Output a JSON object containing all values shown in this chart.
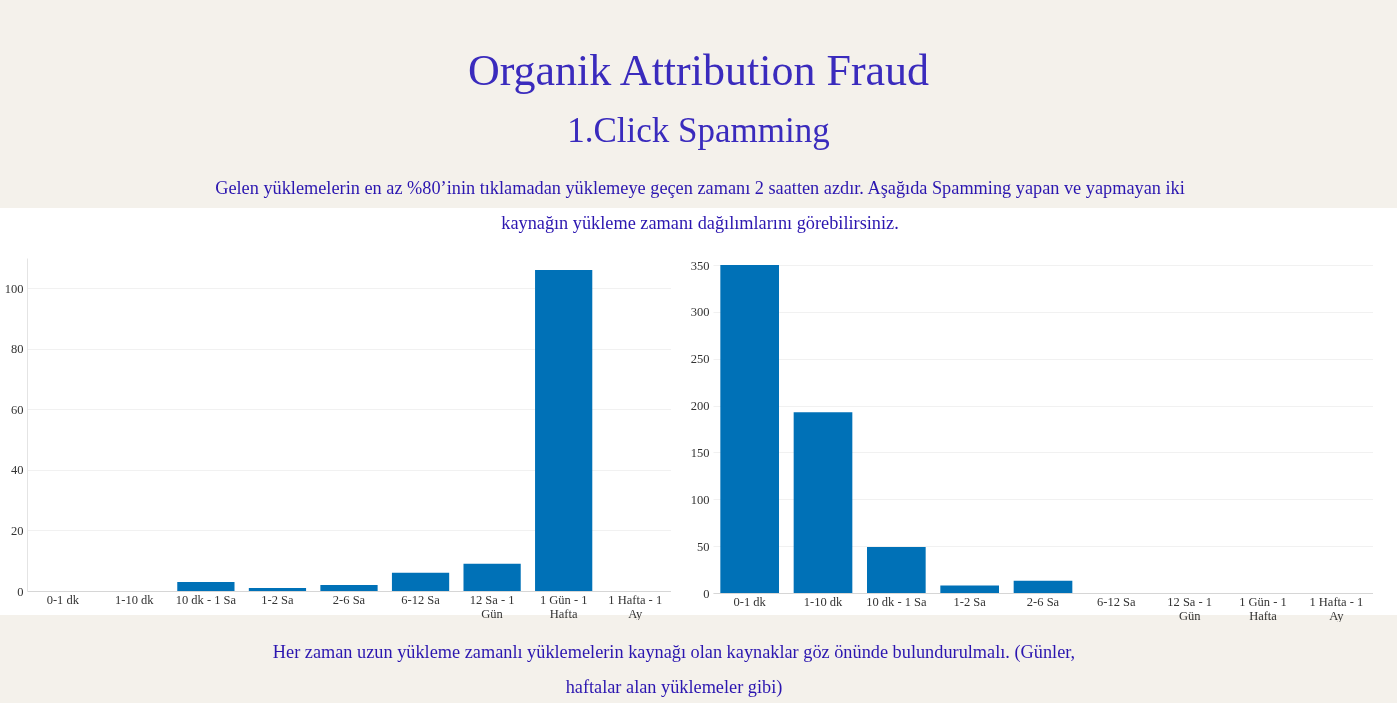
{
  "chart_data": [
    {
      "type": "bar",
      "title": "Organik Attribution Fraud",
      "subtitle": "1.Click Spamming",
      "annotations": [
        "Gelen yüklemelerin en az %80’inin tıklamadan yüklemeye geçen zamanı 2 saatten azdır. Aşağıda Spamming yapan ve yapmayan iki kaynağın yükleme zamanı dağılımlarını görebilirsiniz.",
        "Her zaman uzun yükleme zamanlı yüklemelerin kaynağı olan kaynaklar göz önünde bulundurulmalı. (Günler, haftalar alan yüklemeler gibi)"
      ],
      "categories": [
        "0-1 dk",
        "1-10 dk",
        "10 dk - 1 Sa",
        "1-2 Sa",
        "2-6 Sa",
        "6-12 Sa",
        "12 Sa - 1 Gün",
        "1 Gün - 1 Hafta",
        "1 Hafta - 1 Ay"
      ],
      "values": [
        0,
        0,
        3,
        1,
        2,
        6,
        9,
        106,
        0
      ],
      "color": "#0071b7",
      "ylim": [
        0,
        110
      ],
      "yticks": [
        0,
        20,
        40,
        60,
        80,
        100
      ],
      "grid": "y"
    },
    {
      "type": "bar",
      "categories": [
        "0-1 dk",
        "1-10 dk",
        "10 dk - 1 Sa",
        "1-2 Sa",
        "2-6 Sa",
        "6-12 Sa",
        "12 Sa - 1 Gün",
        "1 Gün - 1 Hafta",
        "1 Hafta - 1 Ay"
      ],
      "values": [
        350,
        193,
        49,
        8,
        13,
        0,
        0,
        0,
        0
      ],
      "color": "#0071b7",
      "ylim": [
        0,
        350
      ],
      "yticks": [
        0,
        50,
        100,
        150,
        200,
        250,
        300,
        350
      ],
      "grid": "y"
    }
  ]
}
